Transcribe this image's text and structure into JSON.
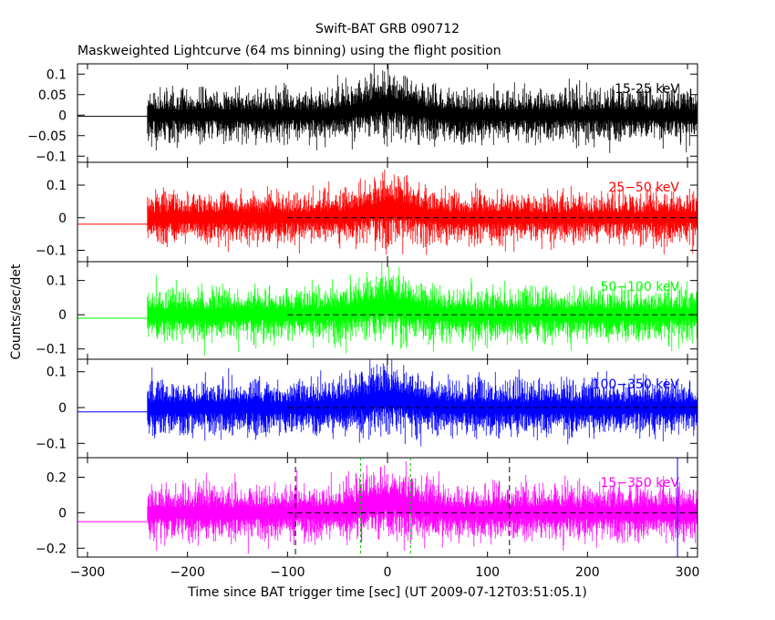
{
  "chart_data": {
    "type": "line",
    "title": "Swift-BAT GRB 090712",
    "subtitle": "Maskweighted Lightcurve (64 ms binning) using the flight position",
    "xlabel": "Time since BAT trigger time [sec] (UT 2009-07-12T03:51:05.1)",
    "ylabel": "Counts/sec/det",
    "xlim": [
      -310,
      310
    ],
    "x_ticks": [
      -300,
      -200,
      -100,
      0,
      100,
      200,
      300
    ],
    "data_start": -240,
    "panels": [
      {
        "name": "15-25 keV",
        "color": "#000000",
        "ylim": [
          -0.115,
          0.125
        ],
        "y_ticks": [
          -0.1,
          -0.05,
          0,
          0.05,
          0.1
        ],
        "y_tick_labels": [
          "−0.1",
          "−0.05",
          "0",
          "0.05",
          "0.1"
        ],
        "pre_level": -0.003,
        "noise_amplitude": 0.048,
        "zero_line": false
      },
      {
        "name": "25−50 keV",
        "color": "#ff0000",
        "ylim": [
          -0.135,
          0.17
        ],
        "y_ticks": [
          -0.1,
          0,
          0.1
        ],
        "y_tick_labels": [
          "−0.1",
          "0",
          "0.1"
        ],
        "pre_level": -0.02,
        "noise_amplitude": 0.06,
        "zero_line": true
      },
      {
        "name": "50−100 keV",
        "color": "#00ff00",
        "ylim": [
          -0.13,
          0.155
        ],
        "y_ticks": [
          -0.1,
          0,
          0.1
        ],
        "y_tick_labels": [
          "−0.1",
          "0",
          "0.1"
        ],
        "pre_level": -0.01,
        "noise_amplitude": 0.06,
        "zero_line": true
      },
      {
        "name": "100−350 keV",
        "color": "#0000ff",
        "ylim": [
          -0.14,
          0.135
        ],
        "y_ticks": [
          -0.1,
          0,
          0.1
        ],
        "y_tick_labels": [
          "−0.1",
          "0",
          "0.1"
        ],
        "pre_level": -0.012,
        "noise_amplitude": 0.058,
        "zero_line": true
      },
      {
        "name": "15−350 keV",
        "color": "#ff00ff",
        "ylim": [
          -0.25,
          0.31
        ],
        "y_ticks": [
          -0.2,
          0,
          0.2
        ],
        "y_tick_labels": [
          "−0.2",
          "0",
          "0.2"
        ],
        "pre_level": -0.05,
        "noise_amplitude": 0.12,
        "zero_line": true
      }
    ],
    "bottom_panel_markers": [
      {
        "x": -92,
        "color": "#000000",
        "dash": "6,4"
      },
      {
        "x": -27,
        "color": "#00c000",
        "dash": "3,3"
      },
      {
        "x": 23,
        "color": "#00c000",
        "dash": "3,3"
      },
      {
        "x": 122,
        "color": "#000000",
        "dash": "6,4"
      },
      {
        "x": 290,
        "color": "#0000ff",
        "dash": ""
      }
    ]
  }
}
